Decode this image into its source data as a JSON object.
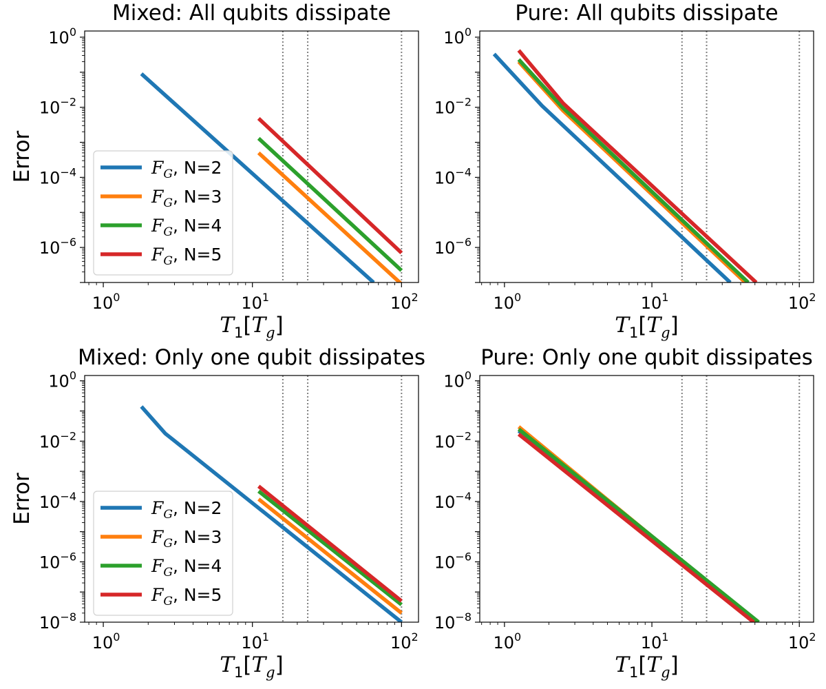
{
  "figure": {
    "xlabel_main": "T",
    "xlabel_sub1": "1",
    "xlabel_bracket_open": "[",
    "xlabel_main2": "T",
    "xlabel_sub2": "g",
    "xlabel_bracket_close": "]",
    "ylabel": "Error",
    "legend_symbol": "F",
    "legend_symbol_sub": "G"
  },
  "chart_data": [
    {
      "type": "line",
      "title": "Mixed: All qubits dissipate",
      "xlabel": "T_1[T_g]",
      "ylabel": "Error",
      "xscale": "log",
      "yscale": "log",
      "xlim": [
        0.75,
        130
      ],
      "ylim": [
        1e-07,
        1.5
      ],
      "xticks": [
        1,
        10,
        100
      ],
      "yticks": [
        1,
        0.01,
        0.0001,
        1e-06
      ],
      "vlines": [
        16,
        23.5,
        100
      ],
      "legend": "center-left",
      "series": [
        {
          "name": "N=2",
          "color": "#1f77b4",
          "x": [
            1.8,
            65
          ],
          "y": [
            0.09,
            1e-07
          ]
        },
        {
          "name": "N=3",
          "color": "#ff7f0e",
          "x": [
            11,
            100
          ],
          "y": [
            0.0005,
            9e-08
          ]
        },
        {
          "name": "N=4",
          "color": "#2ca02c",
          "x": [
            11,
            100
          ],
          "y": [
            0.0013,
            2.2e-07
          ]
        },
        {
          "name": "N=5",
          "color": "#d62728",
          "x": [
            11,
            100
          ],
          "y": [
            0.0048,
            7e-07
          ]
        }
      ]
    },
    {
      "type": "line",
      "title": "Pure: All qubits dissipate",
      "xlabel": "T_1[T_g]",
      "ylabel": "",
      "xscale": "log",
      "yscale": "log",
      "xlim": [
        0.68,
        125
      ],
      "ylim": [
        1e-07,
        1.5
      ],
      "xticks": [
        1,
        10,
        100
      ],
      "yticks": [
        1,
        0.01,
        0.0001,
        1e-06
      ],
      "vlines": [
        16,
        23.5,
        100
      ],
      "legend": "none",
      "series": [
        {
          "name": "N=2",
          "color": "#1f77b4",
          "x": [
            0.85,
            1.8,
            34
          ],
          "y": [
            0.33,
            0.011,
            1e-07
          ]
        },
        {
          "name": "N=3",
          "color": "#ff7f0e",
          "x": [
            1.25,
            2.5,
            43
          ],
          "y": [
            0.2,
            0.008,
            1e-07
          ]
        },
        {
          "name": "N=4",
          "color": "#2ca02c",
          "x": [
            1.25,
            2.5,
            45
          ],
          "y": [
            0.23,
            0.0095,
            1e-07
          ]
        },
        {
          "name": "N=5",
          "color": "#d62728",
          "x": [
            1.25,
            2.5,
            51
          ],
          "y": [
            0.42,
            0.013,
            1e-07
          ]
        }
      ]
    },
    {
      "type": "line",
      "title": "Mixed: Only one qubit dissipates",
      "xlabel": "T_1[T_g]",
      "ylabel": "Error",
      "xscale": "log",
      "yscale": "log",
      "xlim": [
        0.75,
        130
      ],
      "ylim": [
        1e-08,
        1.5
      ],
      "xticks": [
        1,
        10,
        100
      ],
      "yticks": [
        1,
        0.01,
        0.0001,
        1e-06,
        1e-08
      ],
      "vlines": [
        16,
        23.5,
        100
      ],
      "legend": "center-left",
      "series": [
        {
          "name": "N=2",
          "color": "#1f77b4",
          "x": [
            1.8,
            2.6,
            3.7,
            100
          ],
          "y": [
            0.14,
            0.018,
            0.0045,
            1e-08
          ]
        },
        {
          "name": "N=3",
          "color": "#ff7f0e",
          "x": [
            11,
            100
          ],
          "y": [
            0.00012,
            2e-08
          ]
        },
        {
          "name": "N=4",
          "color": "#2ca02c",
          "x": [
            11,
            100
          ],
          "y": [
            0.00022,
            3.8e-08
          ]
        },
        {
          "name": "N=5",
          "color": "#d62728",
          "x": [
            11,
            100
          ],
          "y": [
            0.00032,
            5e-08
          ]
        }
      ]
    },
    {
      "type": "line",
      "title": "Pure: Only one qubit dissipates",
      "xlabel": "T_1[T_g]",
      "ylabel": "",
      "xscale": "log",
      "yscale": "log",
      "xlim": [
        0.68,
        125
      ],
      "ylim": [
        1e-08,
        1.5
      ],
      "xticks": [
        1,
        10,
        100
      ],
      "yticks": [
        1,
        0.01,
        0.0001,
        1e-06,
        1e-08
      ],
      "vlines": [
        16,
        23.5,
        100
      ],
      "legend": "none",
      "series": [
        {
          "name": "N=2",
          "color": "#1f77b4",
          "x": [
            1.25,
            51
          ],
          "y": [
            0.022,
            1e-08
          ]
        },
        {
          "name": "N=3",
          "color": "#ff7f0e",
          "x": [
            1.25,
            51
          ],
          "y": [
            0.03,
            1e-08
          ]
        },
        {
          "name": "N=4",
          "color": "#2ca02c",
          "x": [
            1.25,
            53
          ],
          "y": [
            0.025,
            1e-08
          ]
        },
        {
          "name": "N=5",
          "color": "#d62728",
          "x": [
            1.25,
            49
          ],
          "y": [
            0.017,
            1e-08
          ]
        }
      ]
    }
  ]
}
